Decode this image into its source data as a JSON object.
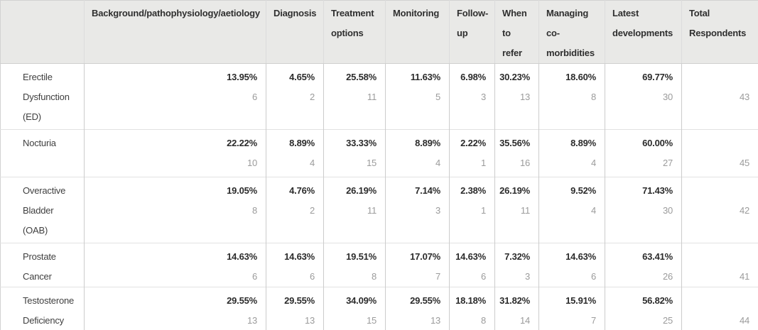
{
  "colors": {
    "header_bg": "#e9e9e7",
    "border_vertical": "#cccccc",
    "border_horizontal": "#e2e2e2",
    "header_text": "#2f2f2f",
    "percent_text": "#2b2b2b",
    "count_text": "#9b9b9b",
    "row_label_text": "#3f3f3f"
  },
  "table": {
    "corner": "",
    "headers": [
      "Background/pathophysiology/aetiology",
      "Diagnosis",
      "Treatment options",
      "Monitoring",
      "Follow-up",
      "When to refer",
      "Managing co-morbidities",
      "Latest developments",
      "Total Respondents"
    ],
    "rows": [
      {
        "label": "Erectile Dysfunction (ED)",
        "cells": [
          {
            "pct": "13.95%",
            "count": "6"
          },
          {
            "pct": "4.65%",
            "count": "2"
          },
          {
            "pct": "25.58%",
            "count": "11"
          },
          {
            "pct": "11.63%",
            "count": "5"
          },
          {
            "pct": "6.98%",
            "count": "3"
          },
          {
            "pct": "30.23%",
            "count": "13"
          },
          {
            "pct": "18.60%",
            "count": "8"
          },
          {
            "pct": "69.77%",
            "count": "30"
          }
        ],
        "total": "43"
      },
      {
        "label": "Nocturia",
        "cells": [
          {
            "pct": "22.22%",
            "count": "10"
          },
          {
            "pct": "8.89%",
            "count": "4"
          },
          {
            "pct": "33.33%",
            "count": "15"
          },
          {
            "pct": "8.89%",
            "count": "4"
          },
          {
            "pct": "2.22%",
            "count": "1"
          },
          {
            "pct": "35.56%",
            "count": "16"
          },
          {
            "pct": "8.89%",
            "count": "4"
          },
          {
            "pct": "60.00%",
            "count": "27"
          }
        ],
        "total": "45"
      },
      {
        "label": "Overactive Bladder (OAB)",
        "cells": [
          {
            "pct": "19.05%",
            "count": "8"
          },
          {
            "pct": "4.76%",
            "count": "2"
          },
          {
            "pct": "26.19%",
            "count": "11"
          },
          {
            "pct": "7.14%",
            "count": "3"
          },
          {
            "pct": "2.38%",
            "count": "1"
          },
          {
            "pct": "26.19%",
            "count": "11"
          },
          {
            "pct": "9.52%",
            "count": "4"
          },
          {
            "pct": "71.43%",
            "count": "30"
          }
        ],
        "total": "42"
      },
      {
        "label": "Prostate Cancer",
        "cells": [
          {
            "pct": "14.63%",
            "count": "6"
          },
          {
            "pct": "14.63%",
            "count": "6"
          },
          {
            "pct": "19.51%",
            "count": "8"
          },
          {
            "pct": "17.07%",
            "count": "7"
          },
          {
            "pct": "14.63%",
            "count": "6"
          },
          {
            "pct": "7.32%",
            "count": "3"
          },
          {
            "pct": "14.63%",
            "count": "6"
          },
          {
            "pct": "63.41%",
            "count": "26"
          }
        ],
        "total": "41"
      },
      {
        "label": "Testosterone Deficiency",
        "cells": [
          {
            "pct": "29.55%",
            "count": "13"
          },
          {
            "pct": "29.55%",
            "count": "13"
          },
          {
            "pct": "34.09%",
            "count": "15"
          },
          {
            "pct": "29.55%",
            "count": "13"
          },
          {
            "pct": "18.18%",
            "count": "8"
          },
          {
            "pct": "31.82%",
            "count": "14"
          },
          {
            "pct": "15.91%",
            "count": "7"
          },
          {
            "pct": "56.82%",
            "count": "25"
          }
        ],
        "total": "44"
      }
    ]
  },
  "chart_data": {
    "type": "table",
    "title": "",
    "columns": [
      "Background/pathophysiology/aetiology",
      "Diagnosis",
      "Treatment options",
      "Monitoring",
      "Follow-up",
      "When to refer",
      "Managing co-morbidities",
      "Latest developments",
      "Total Respondents"
    ],
    "rows": [
      {
        "label": "Erectile Dysfunction (ED)",
        "percentages": [
          13.95,
          4.65,
          25.58,
          11.63,
          6.98,
          30.23,
          18.6,
          69.77
        ],
        "counts": [
          6,
          2,
          11,
          5,
          3,
          13,
          8,
          30
        ],
        "total_respondents": 43
      },
      {
        "label": "Nocturia",
        "percentages": [
          22.22,
          8.89,
          33.33,
          8.89,
          2.22,
          35.56,
          8.89,
          60.0
        ],
        "counts": [
          10,
          4,
          15,
          4,
          1,
          16,
          4,
          27
        ],
        "total_respondents": 45
      },
      {
        "label": "Overactive Bladder (OAB)",
        "percentages": [
          19.05,
          4.76,
          26.19,
          7.14,
          2.38,
          26.19,
          9.52,
          71.43
        ],
        "counts": [
          8,
          2,
          11,
          3,
          1,
          11,
          4,
          30
        ],
        "total_respondents": 42
      },
      {
        "label": "Prostate Cancer",
        "percentages": [
          14.63,
          14.63,
          19.51,
          17.07,
          14.63,
          7.32,
          14.63,
          63.41
        ],
        "counts": [
          6,
          6,
          8,
          7,
          6,
          3,
          6,
          26
        ],
        "total_respondents": 41
      },
      {
        "label": "Testosterone Deficiency",
        "percentages": [
          29.55,
          29.55,
          34.09,
          29.55,
          18.18,
          31.82,
          15.91,
          56.82
        ],
        "counts": [
          13,
          13,
          15,
          13,
          8,
          14,
          7,
          25
        ],
        "total_respondents": 44
      }
    ]
  }
}
